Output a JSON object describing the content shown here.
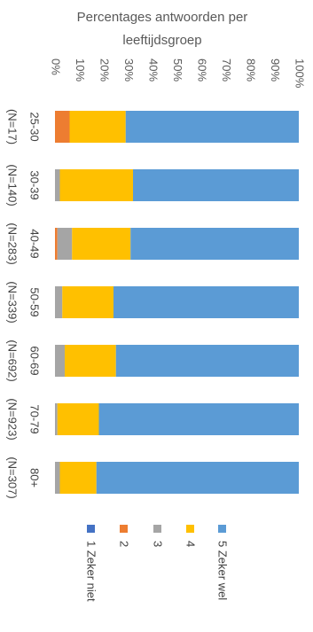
{
  "chart_data": {
    "type": "bar",
    "stacked": true,
    "orientation": "horizontal",
    "title": "Percentages antwoorden per leeftijdsgroep",
    "categories": [
      "25-30",
      "30-39",
      "40-49",
      "50-59",
      "60-69",
      "70-79",
      "80+"
    ],
    "category_counts": [
      "(N=17)",
      "(N=140)",
      "(N=283)",
      "(N=339)",
      "(N=692)",
      "(N=923)",
      "(N=307)"
    ],
    "x_ticks": [
      "0%",
      "10%",
      "20%",
      "30%",
      "40%",
      "50%",
      "60%",
      "70%",
      "80%",
      "90%",
      "100%"
    ],
    "xlim": [
      0,
      100
    ],
    "grid": false,
    "legend_position": "right",
    "series": [
      {
        "name": "1 Zeker niet",
        "color": "#4472C4",
        "values": [
          0,
          0,
          0,
          0,
          0,
          0,
          0
        ]
      },
      {
        "name": "2",
        "color": "#ED7D31",
        "values": [
          6,
          0,
          1,
          0,
          0,
          0,
          0
        ]
      },
      {
        "name": "3",
        "color": "#A5A5A5",
        "values": [
          0,
          2,
          6,
          3,
          4,
          1,
          2
        ]
      },
      {
        "name": "4",
        "color": "#FFC000",
        "values": [
          23,
          30,
          24,
          21,
          21,
          17,
          15
        ]
      },
      {
        "name": "5 Zeker wel",
        "color": "#5B9BD5",
        "values": [
          71,
          68,
          69,
          76,
          75,
          82,
          83
        ]
      }
    ]
  }
}
